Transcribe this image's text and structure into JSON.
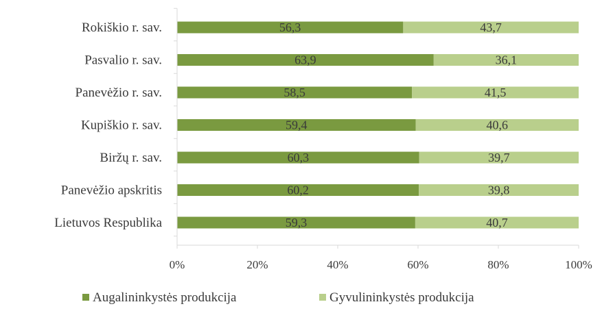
{
  "chart_data": {
    "type": "bar",
    "orientation": "horizontal",
    "stacked": true,
    "percent_stacked": true,
    "categories": [
      "Rokiškio r. sav.",
      "Pasvalio r. sav.",
      "Panevėžio r. sav.",
      "Kupiškio r. sav.",
      "Biržų r. sav.",
      "Panevėžio apskritis",
      "Lietuvos Respublika"
    ],
    "series": [
      {
        "name": "Augalininkystės produkcija",
        "color": "#7a9a40",
        "values": [
          56.3,
          63.9,
          58.5,
          59.4,
          60.3,
          60.2,
          59.3
        ],
        "labels": [
          "56,3",
          "63,9",
          "58,5",
          "59,4",
          "60,3",
          "60,2",
          "59,3"
        ]
      },
      {
        "name": "Gyvulininkystės produkcija",
        "color": "#b9cf8c",
        "values": [
          43.7,
          36.1,
          41.5,
          40.6,
          39.7,
          39.8,
          40.7
        ],
        "labels": [
          "43,7",
          "36,1",
          "41,5",
          "40,6",
          "39,7",
          "39,8",
          "40,7"
        ]
      }
    ],
    "xlim": [
      0,
      100
    ],
    "xticks": [
      "0%",
      "20%",
      "40%",
      "60%",
      "80%",
      "100%"
    ],
    "grid": false,
    "legend_position": "bottom",
    "title": "",
    "xlabel": "",
    "ylabel": ""
  }
}
